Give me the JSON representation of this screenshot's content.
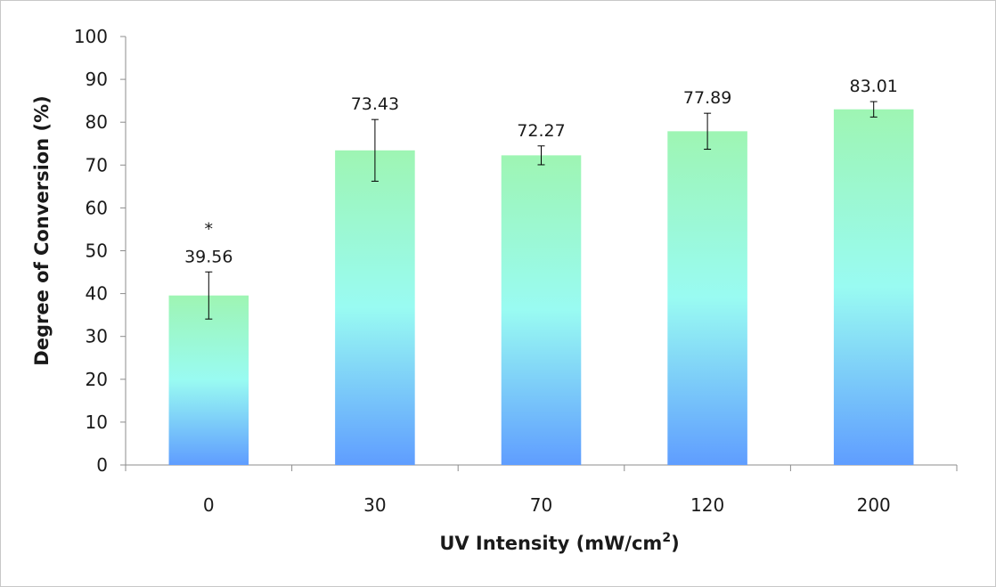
{
  "chart_data": {
    "type": "bar",
    "categories": [
      "0",
      "30",
      "70",
      "120",
      "200"
    ],
    "values": [
      39.56,
      73.43,
      72.27,
      77.89,
      83.01
    ],
    "error_bars": [
      5.5,
      7.2,
      2.2,
      4.2,
      1.8
    ],
    "data_labels": [
      "39.56",
      "73.43",
      "72.27",
      "77.89",
      "83.01"
    ],
    "annotations": [
      {
        "category": "0",
        "text": "*"
      }
    ],
    "xlabel": "UV Intensity (mW/cm",
    "xlabel_superscript": "2",
    "xlabel_suffix": ")",
    "ylabel": "Degree of Conversion (%)",
    "ylim": [
      0,
      100
    ],
    "yticks": [
      0,
      10,
      20,
      30,
      40,
      50,
      60,
      70,
      80,
      90,
      100
    ],
    "ytick_labels": [
      "0",
      "10",
      "20",
      "30",
      "40",
      "50",
      "60",
      "70",
      "80",
      "90",
      "100"
    ],
    "grid": false,
    "legend": "none",
    "colors": {
      "bar_top": "#9ef5b3",
      "bar_mid": "#99fbf2",
      "bar_bottom": "#5f9dff"
    }
  }
}
